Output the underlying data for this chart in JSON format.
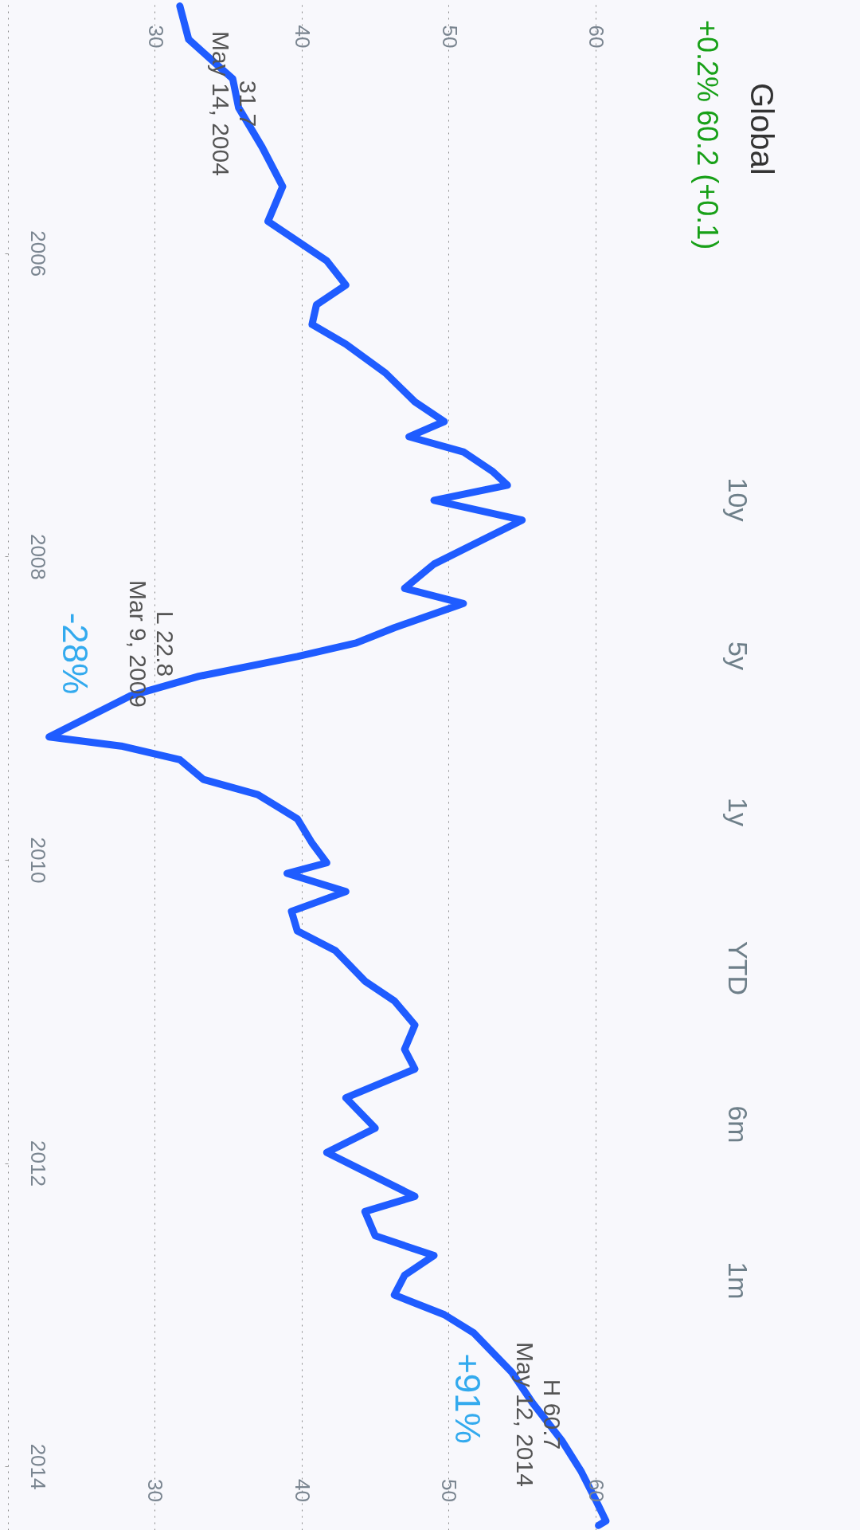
{
  "chart_data": {
    "type": "line",
    "orientation": "horizontal",
    "xlim": [
      20,
      78
    ],
    "xticks": [
      30,
      40,
      50,
      60
    ],
    "x2lim": [
      20,
      78
    ],
    "x2ticks": [
      30,
      40,
      50,
      60
    ],
    "ylim": [
      2014.42,
      2004.33
    ],
    "yticks": [
      2006,
      2008,
      2010,
      2012,
      2014
    ],
    "grid": "x",
    "line_style": "solid",
    "series": [
      {
        "color": "#1f5cff",
        "x": [
          2004.37,
          2004.59,
          2004.85,
          2005.04,
          2005.3,
          2005.56,
          2005.79,
          2005.92,
          2006.05,
          2006.21,
          2006.34,
          2006.47,
          2006.6,
          2006.79,
          2006.98,
          2007.11,
          2007.21,
          2007.31,
          2007.44,
          2007.53,
          2007.63,
          2007.76,
          2007.89,
          2008.05,
          2008.21,
          2008.31,
          2008.47,
          2008.57,
          2008.66,
          2008.79,
          2008.92,
          2009.19,
          2009.25,
          2009.34,
          2009.47,
          2009.57,
          2009.73,
          2009.89,
          2010.02,
          2010.09,
          2010.21,
          2010.34,
          2010.47,
          2010.6,
          2010.8,
          2010.93,
          2011.09,
          2011.25,
          2011.38,
          2011.57,
          2011.77,
          2011.93,
          2012.09,
          2012.22,
          2012.32,
          2012.48,
          2012.61,
          2012.74,
          2012.87,
          2013.0,
          2013.12,
          2013.25,
          2013.38,
          2013.58,
          2013.83,
          2014.03,
          2014.22,
          2014.36,
          2014.39
        ],
        "values": [
          31.7,
          32.3,
          35.3,
          35.7,
          37.3,
          38.7,
          37.7,
          39.7,
          41.7,
          43,
          41,
          40.7,
          43,
          45.7,
          47.7,
          49.7,
          47.3,
          51,
          53,
          54,
          49,
          55,
          52.3,
          49,
          47,
          51,
          46.3,
          43.7,
          39.7,
          33,
          28.3,
          22.8,
          27.7,
          31.7,
          33.3,
          37,
          39.7,
          40.7,
          41.7,
          39,
          43,
          39.3,
          39.7,
          42.3,
          44.3,
          46.3,
          47.7,
          47,
          47.7,
          43,
          45,
          41.7,
          45,
          47.7,
          44.3,
          45,
          49,
          47,
          46.3,
          49.7,
          51.7,
          53,
          54.3,
          55.7,
          57.7,
          59,
          60,
          60.7,
          60.2
        ]
      }
    ],
    "annotations": [
      "Global",
      "+0.2% 60.2 (+0.1)",
      "31.7\nMay 14, 2004",
      "L 22.8\nMar 9, 2009",
      "H 60.7\nMay 12, 2014",
      "-28%",
      "+91%",
      "10y",
      "5y",
      "1y",
      "YTD",
      "6m",
      "1m"
    ]
  }
}
